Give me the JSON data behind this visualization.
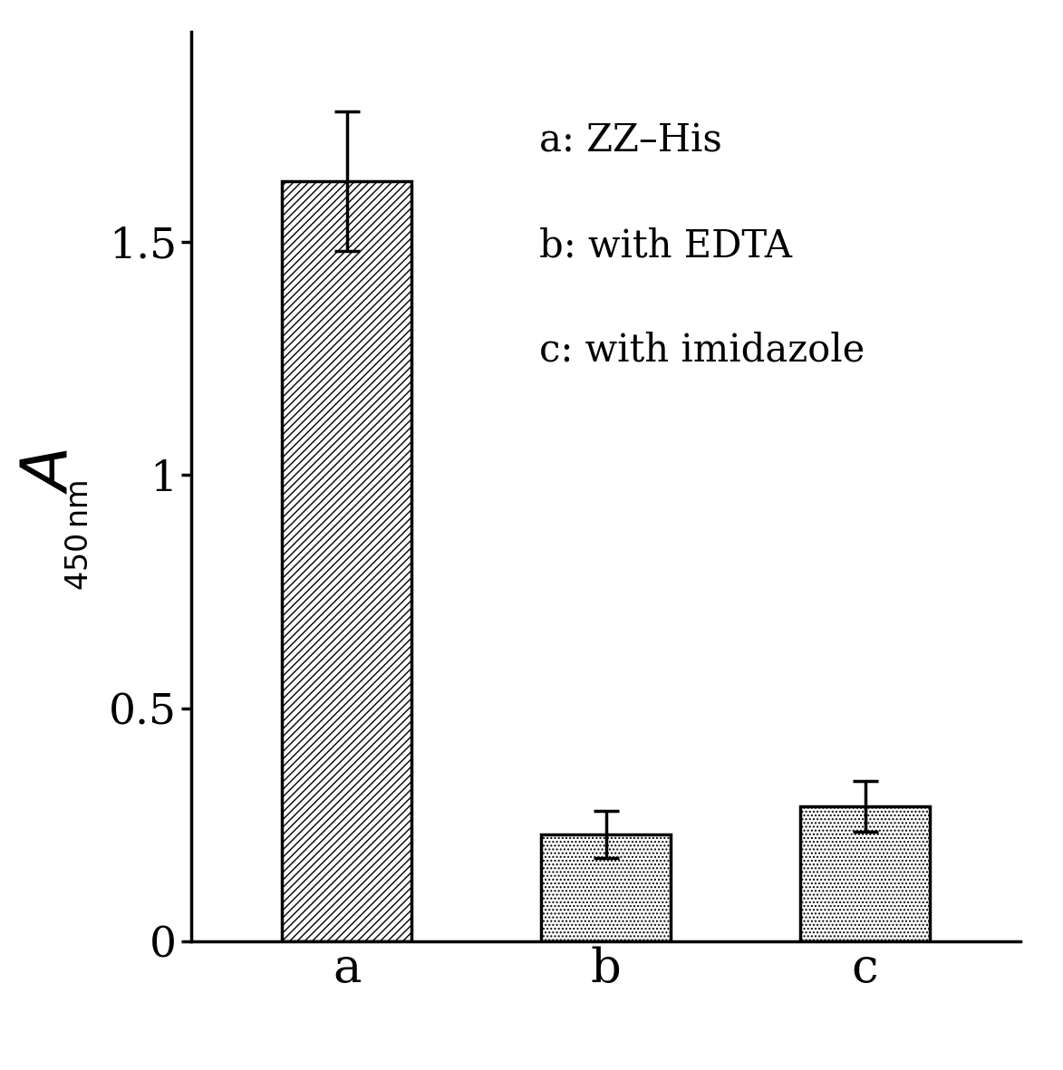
{
  "categories": [
    "a",
    "b",
    "c"
  ],
  "values": [
    1.63,
    0.23,
    0.29
  ],
  "errors": [
    0.15,
    0.05,
    0.055
  ],
  "ytick_labels": [
    "0",
    "0.5",
    "1",
    "1.5"
  ],
  "yticks": [
    0,
    0.5,
    1.0,
    1.5
  ],
  "ylim": [
    0,
    1.95
  ],
  "xlim": [
    -0.6,
    2.6
  ],
  "legend_lines": [
    "a: ZZ–His",
    "b: with EDTA",
    "c: with imidazole"
  ],
  "bar_colors": [
    "white",
    "white",
    "white"
  ],
  "hatch_patterns": [
    "////",
    "....",
    "...."
  ],
  "background_color": "#ffffff",
  "tick_fontsize": 34,
  "xlabel_fontsize": 38,
  "legend_fontsize": 30,
  "bar_width": 0.5,
  "bar_edgecolor": "black",
  "bar_linewidth": 2.5,
  "errorbar_color": "black",
  "errorbar_linewidth": 2.5,
  "errorbar_capsize": 10,
  "errorbar_capthick": 2.5,
  "spine_linewidth": 2.5
}
